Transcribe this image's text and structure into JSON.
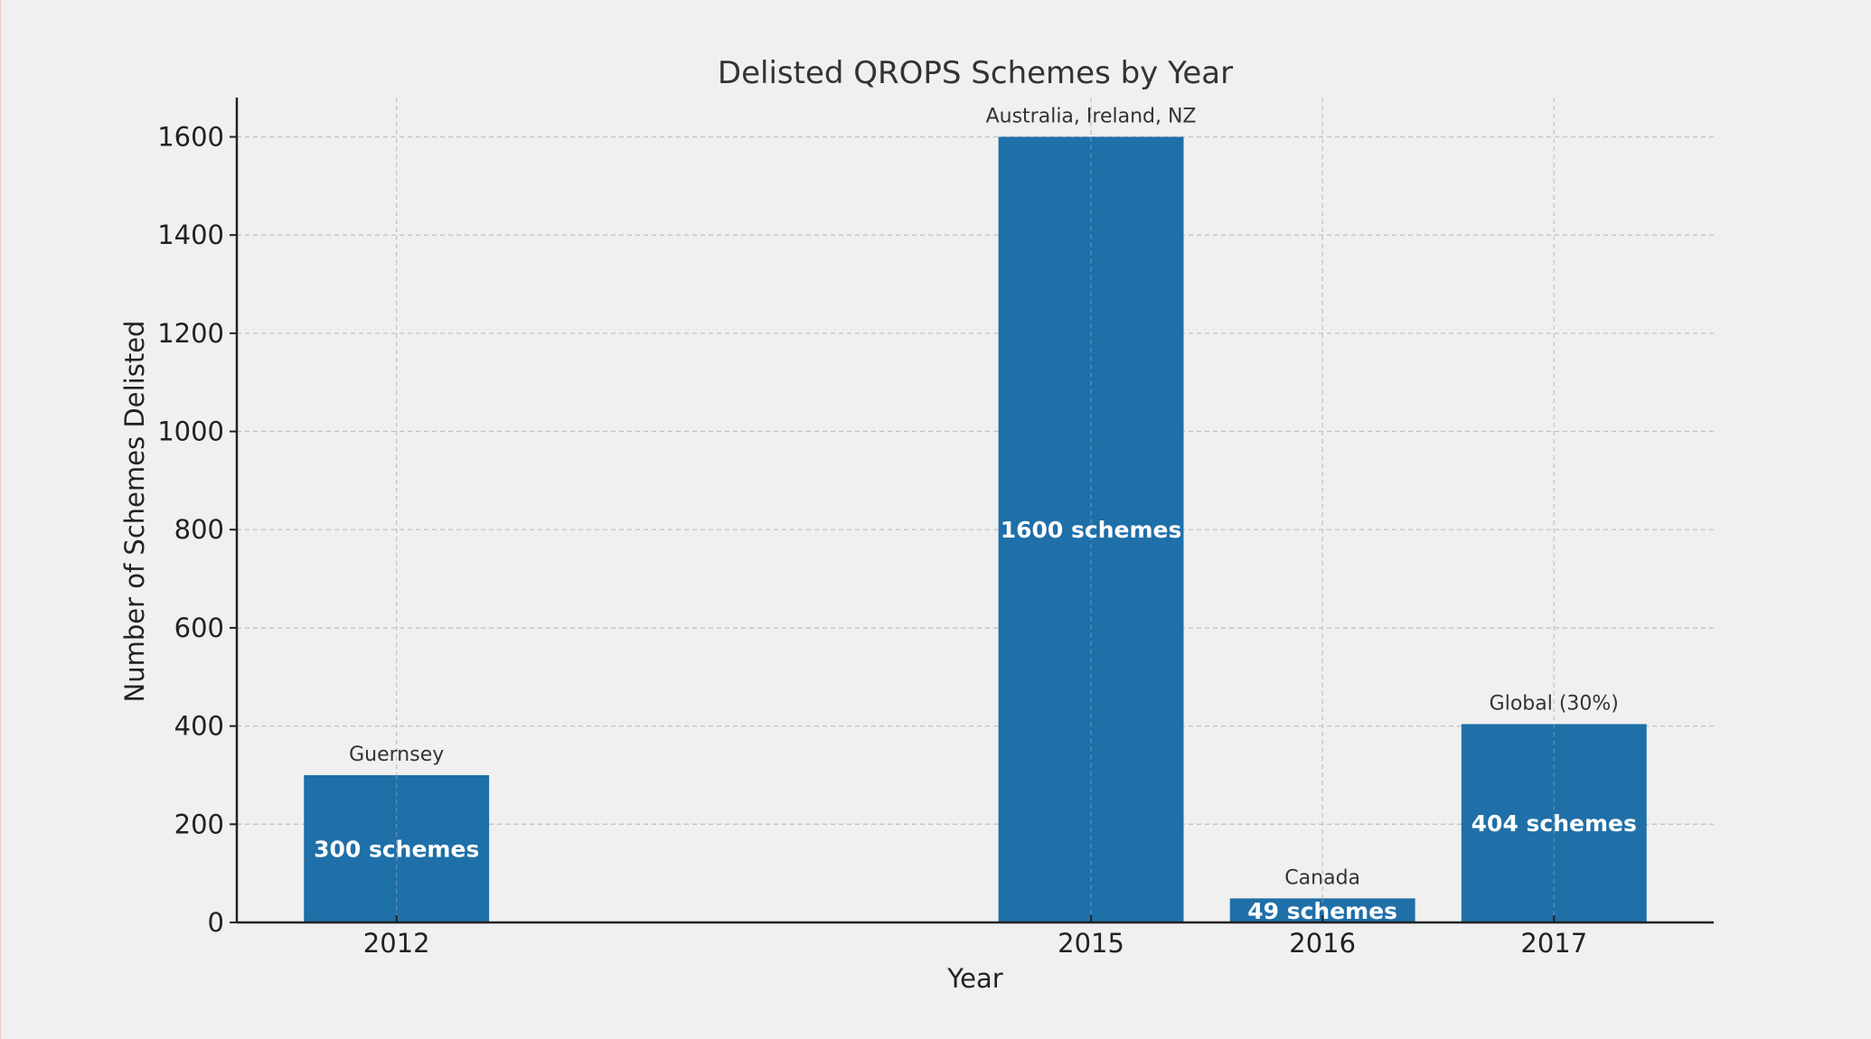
{
  "chart_data": {
    "type": "bar",
    "title": "Delisted QROPS Schemes by Year",
    "xlabel": "Year",
    "ylabel": "Number of Schemes Delisted",
    "x": [
      2012,
      2015,
      2016,
      2017
    ],
    "tick_labels": [
      "2012",
      "2015",
      "2016",
      "2017"
    ],
    "values": [
      300,
      1600,
      49,
      404
    ],
    "bar_labels": [
      "300 schemes",
      "1600 schemes",
      "49 schemes",
      "404 schemes"
    ],
    "annotations": [
      "Guernsey",
      "Australia, Ireland, NZ",
      "Canada",
      "Global (30%)"
    ],
    "xlim": [
      2011.31,
      2017.69
    ],
    "ylim": [
      0,
      1680
    ],
    "yticks": [
      0,
      200,
      400,
      600,
      800,
      1000,
      1200,
      1400,
      1600
    ],
    "grid": true,
    "bar_color": "#1f6fa8",
    "background": "#eff0ef"
  }
}
